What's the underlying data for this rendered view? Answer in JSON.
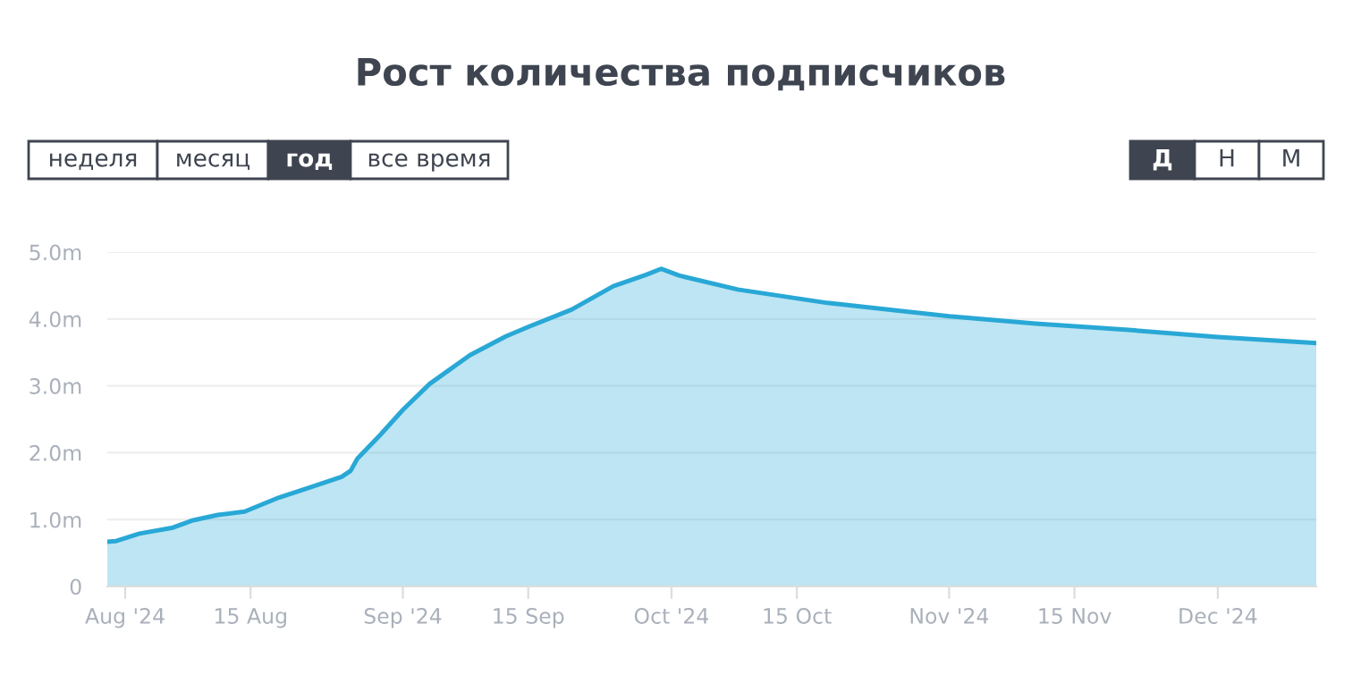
{
  "chart_data": {
    "type": "area",
    "title": "Рост количества подписчиков",
    "annotations": [
      "неделя",
      "месяц",
      "год",
      "все время",
      "Д",
      "Н",
      "М"
    ],
    "x": [
      "2024-07-30",
      "2024-07-31",
      "2024-08-02T14:00",
      "2024-08-06T08:00",
      "2024-08-08T14:00",
      "2024-08-11T08:00",
      "2024-08-14T08:00",
      "2024-08-18T04:00",
      "2024-08-21T14:00",
      "2024-08-25T04:00",
      "2024-08-26T04:00",
      "2024-08-26T22:00",
      "2024-08-29T12:00",
      "2024-09-01",
      "2024-09-04",
      "2024-09-08T12:00",
      "2024-09-12T12:00",
      "2024-09-15T04:00",
      "2024-09-19T20:00",
      "2024-09-24T12:00",
      "2024-09-28T04:00",
      "2024-09-29T20:00",
      "2024-10-01T20:00",
      "2024-10-08T10:00",
      "2024-10-18T10:00",
      "2024-11-01",
      "2024-11-10T16:00",
      "2024-11-20T16:00",
      "2024-12-01",
      "2024-12-12"
    ],
    "series": [
      {
        "color": "#29a8d6",
        "values": [
          0.67,
          0.68,
          0.79,
          0.88,
          0.99,
          1.07,
          1.12,
          1.33,
          1.48,
          1.64,
          1.73,
          1.91,
          2.27,
          2.64,
          3.03,
          3.46,
          3.74,
          3.89,
          4.14,
          4.49,
          4.66,
          4.75,
          4.65,
          4.44,
          4.24,
          4.04,
          3.93,
          3.84,
          3.73,
          3.64
        ]
      }
    ],
    "xlim": [
      "2024-07-30",
      "2024-12-12"
    ],
    "xticks": [
      {
        "value": "2024-08-01",
        "label": "Aug '24"
      },
      {
        "value": "2024-08-15",
        "label": "15 Aug"
      },
      {
        "value": "2024-09-01",
        "label": "Sep '24"
      },
      {
        "value": "2024-09-15",
        "label": "15 Sep"
      },
      {
        "value": "2024-10-01",
        "label": "Oct '24"
      },
      {
        "value": "2024-10-15",
        "label": "15 Oct"
      },
      {
        "value": "2024-11-01",
        "label": "Nov '24"
      },
      {
        "value": "2024-11-15",
        "label": "15 Nov"
      },
      {
        "value": "2024-12-01",
        "label": "Dec '24"
      }
    ],
    "ylim": [
      0,
      5
    ],
    "yticks": [
      0,
      {
        "value": 1,
        "label": "1.0m"
      },
      {
        "value": 2,
        "label": "2.0m"
      },
      {
        "value": 3,
        "label": "3.0m"
      },
      {
        "value": 4,
        "label": "4.0m"
      },
      {
        "value": 5,
        "label": "5.0m"
      }
    ],
    "grid": "y",
    "marker": "none",
    "line_style": "solid"
  }
}
